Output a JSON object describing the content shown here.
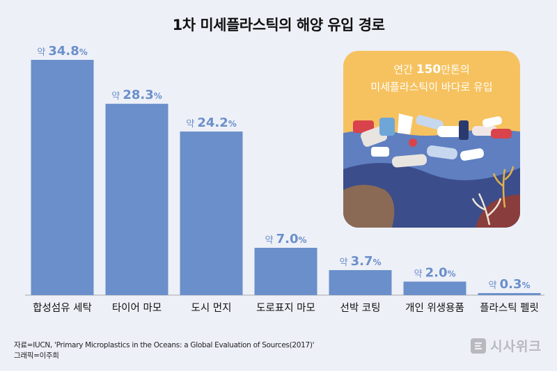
{
  "title": "1차 미세플라스틱의 해양 유입 경로",
  "chart_data": {
    "type": "bar",
    "title": "1차 미세플라스틱의 해양 유입 경로",
    "categories": [
      "합성섬유 세탁",
      "타이어 마모",
      "도시 먼지",
      "도로표지 마모",
      "선박 코팅",
      "개인 위생용품",
      "플라스틱 펠릿"
    ],
    "values": [
      34.8,
      28.3,
      24.2,
      7.0,
      3.7,
      2.0,
      0.3
    ],
    "value_labels": [
      "34.8",
      "28.3",
      "24.2",
      "7.0",
      "3.7",
      "2.0",
      "0.3"
    ],
    "value_prefix": "약",
    "value_unit": "%",
    "ylim": [
      0,
      34.8
    ],
    "bar_color": "#6a8fca",
    "grid": false,
    "legend": "none"
  },
  "illustration": {
    "caption_pre": "연간 ",
    "caption_highlight": "150",
    "caption_post": "만톤의",
    "caption_line2": "미세플라스틱이 바다로 유입",
    "colors": {
      "sky": "#f6c25f",
      "sea_light": "#5f7fc0",
      "sea_dark": "#3c4d8b"
    }
  },
  "footer": {
    "source": "자료=IUCN, 'Primary Microplastics in the Oceans: a Global Evaluation of Sources(2017)'",
    "credit": "그래픽=이주희"
  },
  "logo": {
    "text": "시사위크",
    "icon": "sisaweek-logo-icon"
  }
}
